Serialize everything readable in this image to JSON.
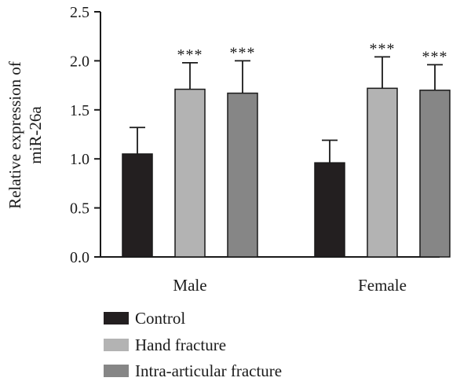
{
  "chart_data": {
    "type": "bar",
    "ylabel_lines": [
      "Relative expression of",
      "miR-26a"
    ],
    "ylim": [
      0,
      2.5
    ],
    "yticks": [
      "0.0",
      "0.5",
      "1.0",
      "1.5",
      "2.0",
      "2.5"
    ],
    "categories": [
      "Male",
      "Female"
    ],
    "series": [
      {
        "name": "Control",
        "color": "#231f20",
        "values": [
          1.05,
          0.96
        ],
        "errors": [
          0.27,
          0.23
        ],
        "significance": [
          "",
          ""
        ]
      },
      {
        "name": "Hand fracture",
        "color": "#b3b3b3",
        "values": [
          1.71,
          1.72
        ],
        "errors": [
          0.27,
          0.32
        ],
        "significance": [
          "***",
          "***"
        ]
      },
      {
        "name": "Intra-articular fracture",
        "color": "#868686",
        "values": [
          1.67,
          1.7
        ],
        "errors": [
          0.33,
          0.26
        ],
        "significance": [
          "***",
          "***"
        ]
      }
    ],
    "legend_position": "bottom-left"
  }
}
